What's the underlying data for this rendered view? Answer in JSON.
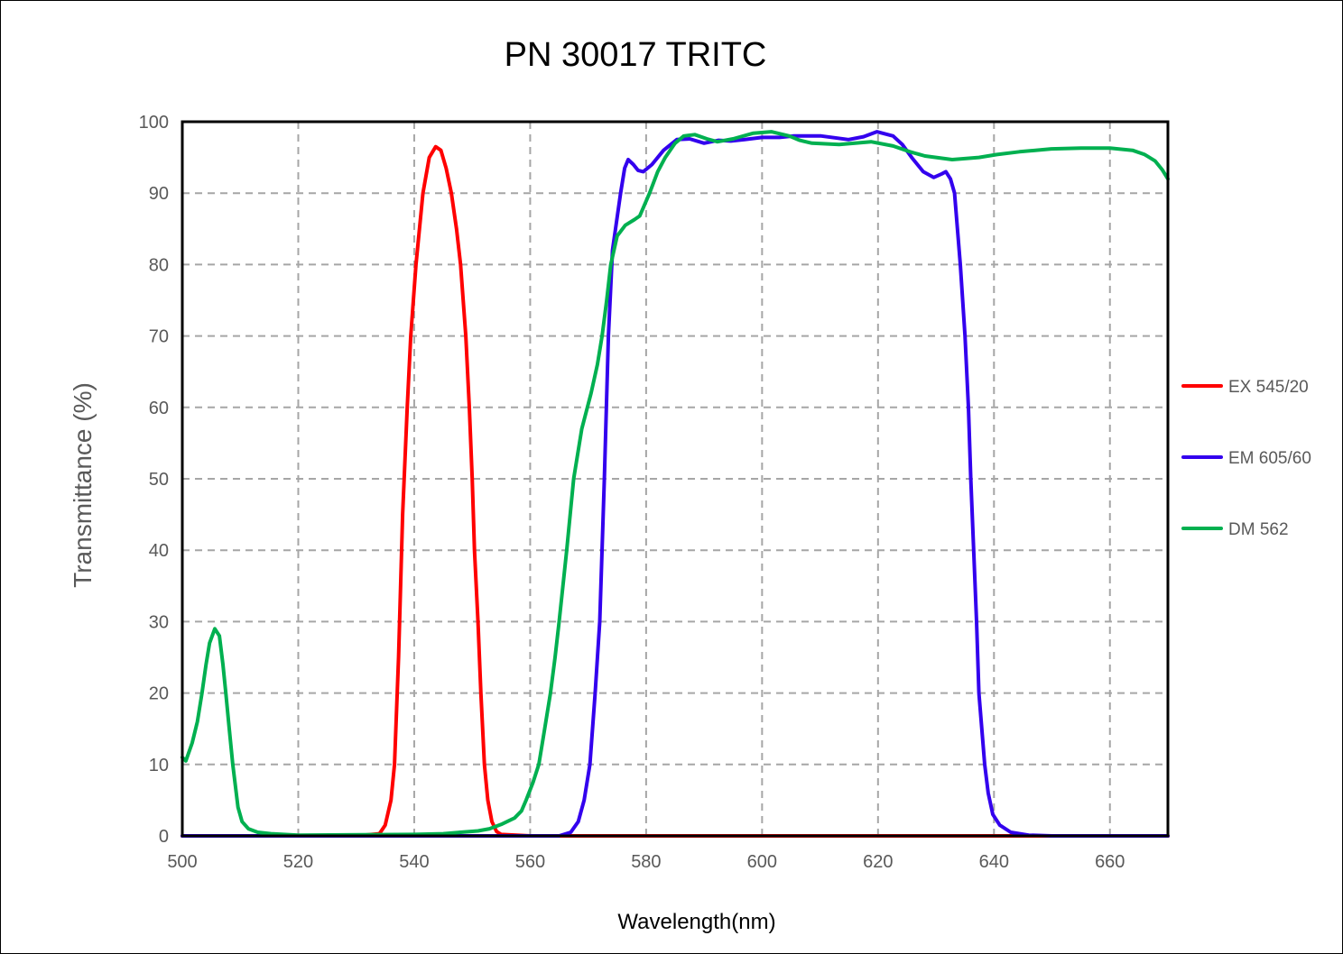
{
  "chart_data": {
    "type": "line",
    "title": "PN 30017  TRITC",
    "xlabel": "Wavelength(nm)",
    "ylabel": "Transmittance (%)",
    "xlim": [
      500,
      670
    ],
    "ylim": [
      0,
      100
    ],
    "xticks": [
      500,
      520,
      540,
      560,
      580,
      600,
      620,
      640,
      660
    ],
    "yticks": [
      0,
      10,
      20,
      30,
      40,
      50,
      60,
      70,
      80,
      90,
      100
    ],
    "grid": true,
    "legend_position": "right",
    "series": [
      {
        "name": "EX 545/20",
        "color": "#ff0000",
        "points": [
          [
            500,
            0
          ],
          [
            530,
            0
          ],
          [
            534,
            0.3
          ],
          [
            535,
            1.5
          ],
          [
            536,
            5
          ],
          [
            536.6,
            10
          ],
          [
            537.3,
            25
          ],
          [
            538,
            45
          ],
          [
            538.8,
            60
          ],
          [
            539.4,
            70
          ],
          [
            540.3,
            80
          ],
          [
            541.5,
            90
          ],
          [
            542.6,
            95
          ],
          [
            543.7,
            96.5
          ],
          [
            544.6,
            96
          ],
          [
            545.5,
            93.5
          ],
          [
            546.4,
            90
          ],
          [
            547.3,
            85
          ],
          [
            548,
            80
          ],
          [
            548.9,
            70
          ],
          [
            549.5,
            60
          ],
          [
            550,
            50
          ],
          [
            550.4,
            40
          ],
          [
            551,
            30
          ],
          [
            551.5,
            20
          ],
          [
            552.1,
            10
          ],
          [
            552.7,
            5
          ],
          [
            553.4,
            2
          ],
          [
            554.2,
            0.6
          ],
          [
            555,
            0.2
          ],
          [
            560,
            0
          ],
          [
            670,
            0
          ]
        ]
      },
      {
        "name": "EM 605/60",
        "color": "#3300ee",
        "points": [
          [
            500,
            0
          ],
          [
            565,
            0
          ],
          [
            567,
            0.5
          ],
          [
            568.3,
            2
          ],
          [
            569.3,
            5
          ],
          [
            570.3,
            10
          ],
          [
            571.2,
            20
          ],
          [
            572,
            30
          ],
          [
            572.8,
            50
          ],
          [
            573.5,
            70
          ],
          [
            574.2,
            82
          ],
          [
            575.6,
            90
          ],
          [
            576.3,
            93.5
          ],
          [
            576.9,
            94.7
          ],
          [
            577.8,
            94
          ],
          [
            578.6,
            93.2
          ],
          [
            579.5,
            93
          ],
          [
            581,
            94
          ],
          [
            583,
            96
          ],
          [
            585.3,
            97.5
          ],
          [
            587.5,
            97.6
          ],
          [
            590,
            97
          ],
          [
            592.5,
            97.4
          ],
          [
            594.6,
            97.3
          ],
          [
            597,
            97.5
          ],
          [
            600,
            97.8
          ],
          [
            603,
            97.8
          ],
          [
            605.5,
            98
          ],
          [
            610.2,
            98
          ],
          [
            614.9,
            97.5
          ],
          [
            617.5,
            97.9
          ],
          [
            619.8,
            98.6
          ],
          [
            622.6,
            98
          ],
          [
            624.2,
            96.8
          ],
          [
            625.8,
            95
          ],
          [
            627.8,
            93
          ],
          [
            629.6,
            92.2
          ],
          [
            631,
            92.7
          ],
          [
            631.7,
            93
          ],
          [
            632.5,
            92
          ],
          [
            633.2,
            90
          ],
          [
            634.2,
            80
          ],
          [
            635,
            70
          ],
          [
            635.6,
            60
          ],
          [
            636,
            50
          ],
          [
            636.5,
            40
          ],
          [
            637,
            30
          ],
          [
            637.4,
            20
          ],
          [
            638.4,
            10
          ],
          [
            639,
            6
          ],
          [
            639.8,
            3
          ],
          [
            641,
            1.5
          ],
          [
            642.9,
            0.5
          ],
          [
            646,
            0.1
          ],
          [
            650,
            0
          ],
          [
            670,
            0
          ]
        ]
      },
      {
        "name": "DM 562",
        "color": "#00b050",
        "points": [
          [
            500,
            11
          ],
          [
            500.6,
            10.5
          ],
          [
            501.7,
            13
          ],
          [
            502.6,
            16
          ],
          [
            503.4,
            20
          ],
          [
            504.1,
            24
          ],
          [
            504.7,
            27
          ],
          [
            505.6,
            29
          ],
          [
            506.4,
            28
          ],
          [
            507,
            24
          ],
          [
            507.5,
            20
          ],
          [
            508.1,
            15
          ],
          [
            508.7,
            10
          ],
          [
            509.6,
            4
          ],
          [
            510.3,
            2
          ],
          [
            511.4,
            1
          ],
          [
            513,
            0.5
          ],
          [
            515.3,
            0.3
          ],
          [
            520,
            0.1
          ],
          [
            540,
            0.2
          ],
          [
            545,
            0.3
          ],
          [
            548,
            0.5
          ],
          [
            551,
            0.7
          ],
          [
            553,
            1
          ],
          [
            555,
            1.6
          ],
          [
            557.3,
            2.5
          ],
          [
            558.5,
            3.5
          ],
          [
            559.3,
            5
          ],
          [
            560.5,
            7.5
          ],
          [
            561.5,
            10
          ],
          [
            562.5,
            15
          ],
          [
            563.5,
            20
          ],
          [
            564.3,
            25
          ],
          [
            565,
            30
          ],
          [
            566.3,
            40
          ],
          [
            567.5,
            50
          ],
          [
            568.9,
            57
          ],
          [
            570.5,
            62
          ],
          [
            571.6,
            66
          ],
          [
            572.4,
            70
          ],
          [
            573.2,
            75
          ],
          [
            573.9,
            80
          ],
          [
            575,
            84
          ],
          [
            576.4,
            85.5
          ],
          [
            578,
            86.3
          ],
          [
            578.9,
            86.8
          ],
          [
            580.6,
            90
          ],
          [
            582,
            93
          ],
          [
            583.3,
            95
          ],
          [
            585,
            97
          ],
          [
            586.5,
            98
          ],
          [
            588.4,
            98.2
          ],
          [
            590.5,
            97.6
          ],
          [
            592.3,
            97.2
          ],
          [
            595,
            97.6
          ],
          [
            598.5,
            98.4
          ],
          [
            601.6,
            98.6
          ],
          [
            604.7,
            98
          ],
          [
            606.5,
            97.4
          ],
          [
            608.6,
            97
          ],
          [
            613.3,
            96.8
          ],
          [
            618.8,
            97.2
          ],
          [
            622.6,
            96.6
          ],
          [
            625.5,
            95.8
          ],
          [
            628.1,
            95.2
          ],
          [
            632.8,
            94.7
          ],
          [
            637.4,
            95
          ],
          [
            640.5,
            95.4
          ],
          [
            644.4,
            95.8
          ],
          [
            649.9,
            96.2
          ],
          [
            655,
            96.3
          ],
          [
            660,
            96.3
          ],
          [
            663.9,
            96
          ],
          [
            666,
            95.4
          ],
          [
            667.8,
            94.5
          ],
          [
            669,
            93.3
          ],
          [
            670,
            92
          ]
        ]
      }
    ]
  },
  "legend": {
    "items": [
      {
        "label": "EX 545/20",
        "color": "#ff0000"
      },
      {
        "label": "EM 605/60",
        "color": "#3300ee"
      },
      {
        "label": "DM 562",
        "color": "#00b050"
      }
    ]
  }
}
